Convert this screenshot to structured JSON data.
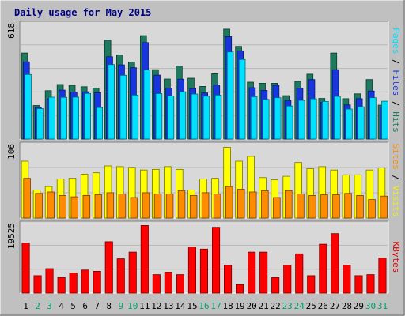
{
  "chart_data": {
    "type": "bar",
    "title": "Daily usage for May 2015",
    "categories": [
      "1",
      "2",
      "3",
      "4",
      "5",
      "6",
      "7",
      "8",
      "9",
      "10",
      "11",
      "12",
      "13",
      "14",
      "15",
      "16",
      "17",
      "18",
      "19",
      "20",
      "21",
      "22",
      "23",
      "24",
      "25",
      "26",
      "27",
      "28",
      "29",
      "30",
      "31"
    ],
    "weekend_categories": [
      "2",
      "3",
      "9",
      "10",
      "16",
      "17",
      "23",
      "24",
      "30",
      "31"
    ],
    "panels": [
      {
        "name": "hits-files-pages",
        "ymax_label": "618",
        "ymax": 618,
        "ylabel_parts": [
          {
            "text": "Pages",
            "color": "#00e0ff"
          },
          {
            "text": " / ",
            "color": "#000000"
          },
          {
            "text": "Files",
            "color": "#1836e0"
          },
          {
            "text": " / ",
            "color": "#000000"
          },
          {
            "text": "Hits",
            "color": "#1e7a5e"
          }
        ],
        "series": [
          {
            "name": "Hits",
            "color": "#1e7a5e",
            "values": [
              464,
              181,
              261,
              294,
              290,
              282,
              275,
              533,
              454,
              416,
              558,
              374,
              324,
              394,
              328,
              284,
              352,
              593,
              500,
              307,
              301,
              301,
              234,
              311,
              350,
              219,
              464,
              218,
              244,
              321,
              183
            ]
          },
          {
            "name": "Files",
            "color": "#1836e0",
            "values": [
              417,
              171,
              218,
              264,
              254,
              255,
              250,
              444,
              400,
              385,
              521,
              345,
              275,
              323,
              272,
              249,
              292,
              552,
              476,
              277,
              262,
              290,
              208,
              274,
              321,
              198,
              374,
              184,
              218,
              259,
              172
            ]
          },
          {
            "name": "Pages",
            "color": "#00e0ff",
            "values": [
              348,
              164,
              226,
              225,
              226,
              246,
              170,
              402,
              344,
              237,
              373,
              245,
              232,
              255,
              243,
              231,
              237,
              470,
              429,
              228,
              214,
              223,
              178,
              209,
              217,
              203,
              230,
              162,
              174,
              223,
              204
            ]
          }
        ]
      },
      {
        "name": "visits-sites",
        "ymax_label": "106",
        "ymax": 106,
        "ylabel_parts": [
          {
            "text": "Sites",
            "color": "#ff8c00"
          },
          {
            "text": " / ",
            "color": "#000000"
          },
          {
            "text": "Visits",
            "color": "#f0f000"
          }
        ],
        "series": [
          {
            "name": "Visits",
            "color": "#ffff00",
            "values": [
              83,
              41,
              46,
              57,
              58,
              64,
              66,
              76,
              75,
              74,
              70,
              71,
              75,
              71,
              41,
              57,
              58,
              103,
              83,
              90,
              59,
              56,
              61,
              81,
              72,
              75,
              70,
              63,
              63,
              70,
              73
            ]
          },
          {
            "name": "Sites",
            "color": "#ff8c00",
            "values": [
              58,
              36,
              38,
              33,
              31,
              33,
              34,
              37,
              35,
              30,
              37,
              35,
              35,
              40,
              33,
              37,
              35,
              46,
              42,
              38,
              40,
              30,
              40,
              35,
              33,
              34,
              34,
              36,
              33,
              27,
              32
            ]
          }
        ]
      },
      {
        "name": "kbytes",
        "ymax_label": "19525",
        "ymax": 19525,
        "ylabel_parts": [
          {
            "text": "KBytes",
            "color": "#e00000"
          }
        ],
        "series": [
          {
            "name": "KBytes",
            "color": "#ff0000",
            "values": [
              14200,
              4950,
              6950,
              4450,
              5750,
              6550,
              6200,
              14600,
              9750,
              11650,
              19200,
              5250,
              5950,
              5250,
              13100,
              12500,
              18700,
              7900,
              2400,
              11650,
              11650,
              4450,
              7950,
              11150,
              4950,
              13900,
              16900,
              7950,
              4950,
              5250,
              9950
            ]
          }
        ]
      }
    ],
    "colors": {
      "background": "#c0c0c0",
      "plot_background": "#d8d8d8",
      "title": "#00007f",
      "weekday_label": "#000000",
      "weekend_label": "#00a070"
    }
  }
}
